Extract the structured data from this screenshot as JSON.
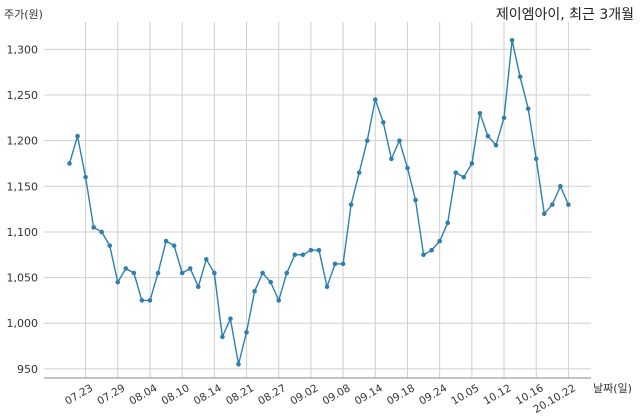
{
  "chart_data": {
    "type": "line",
    "title": "제이엠아이, 최근 3개월",
    "ylabel": "주가(원)",
    "xlabel": "날짜(일)",
    "ylim": [
      940,
      1330
    ],
    "yticks": [
      950,
      1000,
      1050,
      1100,
      1150,
      1200,
      1250,
      1300
    ],
    "ytick_labels": [
      "950",
      "1,000",
      "1,050",
      "1,100",
      "1,150",
      "1,200",
      "1,250",
      "1,300"
    ],
    "xtick_labels": [
      "07.23",
      "07.29",
      "08.04",
      "08.10",
      "08.14",
      "08.21",
      "08.27",
      "09.02",
      "09.08",
      "09.14",
      "09.18",
      "09.24",
      "10.05",
      "10.12",
      "10.16",
      "20.10.22"
    ],
    "xtick_index": [
      2,
      6,
      10,
      14,
      18,
      22,
      26,
      30,
      34,
      38,
      42,
      46,
      50,
      54,
      58,
      62
    ],
    "grid": true,
    "line_color": "#2e7fb0",
    "values": [
      1175,
      1205,
      1160,
      1105,
      1100,
      1085,
      1045,
      1060,
      1055,
      1025,
      1025,
      1055,
      1090,
      1085,
      1055,
      1060,
      1040,
      1070,
      1055,
      985,
      1005,
      955,
      990,
      1035,
      1055,
      1045,
      1025,
      1055,
      1075,
      1075,
      1080,
      1080,
      1040,
      1065,
      1065,
      1130,
      1165,
      1200,
      1245,
      1220,
      1180,
      1200,
      1170,
      1135,
      1075,
      1080,
      1090,
      1110,
      1165,
      1160,
      1175,
      1230,
      1205,
      1195,
      1225,
      1310,
      1270,
      1235,
      1180,
      1120,
      1130,
      1150,
      1130
    ]
  }
}
